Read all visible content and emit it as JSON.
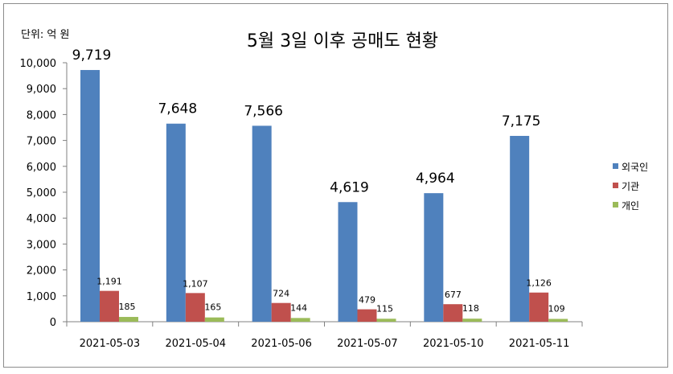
{
  "chart_data": {
    "type": "bar",
    "title": "5월 3일 이후 공매도 현황",
    "unit_label": "단위: 억 원",
    "categories": [
      "2021-05-03",
      "2021-05-04",
      "2021-05-06",
      "2021-05-07",
      "2021-05-10",
      "2021-05-11"
    ],
    "series": [
      {
        "name": "외국인",
        "color": "#4f81bd",
        "values": [
          9719,
          7648,
          7566,
          4619,
          4964,
          7175
        ],
        "labels": [
          "9,719",
          "7,648",
          "7,566",
          "4,619",
          "4,964",
          "7,175"
        ]
      },
      {
        "name": "기관",
        "color": "#c0504d",
        "values": [
          1191,
          1107,
          724,
          479,
          677,
          1126
        ],
        "labels": [
          "1,191",
          "1,107",
          "724",
          "479",
          "677",
          "1,126"
        ]
      },
      {
        "name": "개인",
        "color": "#9bbb59",
        "values": [
          185,
          165,
          144,
          115,
          118,
          109
        ],
        "labels": [
          "185",
          "165",
          "144",
          "115",
          "118",
          "109"
        ]
      }
    ],
    "ylim": [
      0,
      10000
    ],
    "yticks": [
      {
        "value": 0,
        "label": "0"
      },
      {
        "value": 1000,
        "label": "1,000"
      },
      {
        "value": 2000,
        "label": "2,000"
      },
      {
        "value": 3000,
        "label": "3,000"
      },
      {
        "value": 4000,
        "label": "4,000"
      },
      {
        "value": 5000,
        "label": "5,000"
      },
      {
        "value": 6000,
        "label": "6,000"
      },
      {
        "value": 7000,
        "label": "7,000"
      },
      {
        "value": 8000,
        "label": "8,000"
      },
      {
        "value": 9000,
        "label": "9,000"
      },
      {
        "value": 10000,
        "label": "10,000"
      }
    ],
    "grid": false,
    "legend_position": "right"
  }
}
